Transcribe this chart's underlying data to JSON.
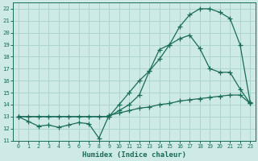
{
  "xlabel": "Humidex (Indice chaleur)",
  "bg_color": "#cdeae6",
  "grid_color": "#aed4cf",
  "line_color": "#1a6b5a",
  "xlim": [
    -0.5,
    23.5
  ],
  "ylim": [
    11,
    22.5
  ],
  "yticks": [
    11,
    12,
    13,
    14,
    15,
    16,
    17,
    18,
    19,
    20,
    21,
    22
  ],
  "xticks": [
    0,
    1,
    2,
    3,
    4,
    5,
    6,
    7,
    8,
    9,
    10,
    11,
    12,
    13,
    14,
    15,
    16,
    17,
    18,
    19,
    20,
    21,
    22,
    23
  ],
  "curve1_x": [
    0,
    1,
    2,
    3,
    4,
    5,
    6,
    7,
    8,
    9,
    10,
    11,
    12,
    13,
    14,
    15,
    16,
    17,
    18,
    19,
    20,
    21,
    22,
    23
  ],
  "curve1_y": [
    13.0,
    12.6,
    12.2,
    12.3,
    12.1,
    12.3,
    12.5,
    12.4,
    11.2,
    13.1,
    13.3,
    13.5,
    13.7,
    13.8,
    14.0,
    14.1,
    14.3,
    14.4,
    14.5,
    14.6,
    14.7,
    14.8,
    14.8,
    14.1
  ],
  "curve2_x": [
    0,
    1,
    2,
    3,
    4,
    5,
    6,
    7,
    8,
    9,
    10,
    11,
    12,
    13,
    14,
    15,
    16,
    17,
    18,
    19,
    20,
    21,
    22,
    23
  ],
  "curve2_y": [
    13.0,
    13.0,
    13.0,
    13.0,
    13.0,
    13.0,
    13.0,
    13.0,
    13.0,
    13.0,
    14.0,
    15.0,
    16.0,
    16.8,
    17.8,
    19.0,
    20.5,
    21.5,
    22.0,
    22.0,
    21.7,
    21.2,
    19.0,
    14.2
  ],
  "curve3_x": [
    0,
    9,
    10,
    11,
    12,
    13,
    14,
    15,
    16,
    17,
    18,
    19,
    20,
    21,
    22,
    23
  ],
  "curve3_y": [
    13.0,
    13.0,
    13.5,
    14.0,
    14.8,
    16.8,
    18.6,
    19.0,
    19.5,
    19.8,
    18.7,
    17.0,
    16.7,
    16.7,
    15.3,
    14.1
  ]
}
